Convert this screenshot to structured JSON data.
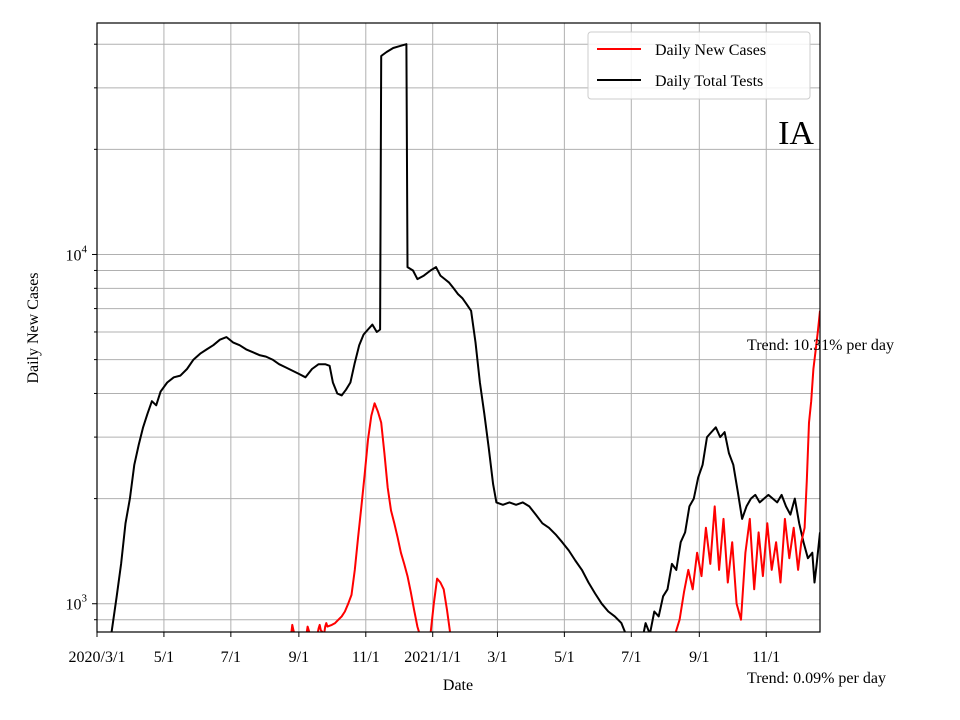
{
  "chart_data": {
    "type": "line",
    "xlabel": "Date",
    "ylabel": "Daily New Cases",
    "yscale": "log",
    "ylim": [
      830,
      46000
    ],
    "xlim": [
      "2020-03-01",
      "2021-12-20"
    ],
    "x_ticks": [
      {
        "date": "2020-03-01",
        "label": "2020/3/1"
      },
      {
        "date": "2020-05-01",
        "label": "5/1"
      },
      {
        "date": "2020-07-01",
        "label": "7/1"
      },
      {
        "date": "2020-09-01",
        "label": "9/1"
      },
      {
        "date": "2020-11-01",
        "label": "11/1"
      },
      {
        "date": "2021-01-01",
        "label": "2021/1/1"
      },
      {
        "date": "2021-03-01",
        "label": "3/1"
      },
      {
        "date": "2021-05-01",
        "label": "5/1"
      },
      {
        "date": "2021-07-01",
        "label": "7/1"
      },
      {
        "date": "2021-09-01",
        "label": "9/1"
      },
      {
        "date": "2021-11-01",
        "label": "11/1"
      }
    ],
    "y_major_ticks": [
      {
        "value": 1000,
        "base": "10",
        "exp": "3"
      },
      {
        "value": 10000,
        "base": "10",
        "exp": "4"
      }
    ],
    "y_minor_ticks": [
      900,
      2000,
      3000,
      4000,
      5000,
      6000,
      7000,
      8000,
      9000,
      20000,
      30000,
      40000
    ],
    "grid": true,
    "legend_position": "top-right",
    "annotations": {
      "state": "IA",
      "trend_cases": "Trend: 10.31% per day",
      "trend_tests": "Trend: 0.09% per day"
    },
    "series": [
      {
        "name": "Daily New Cases",
        "color": "#ff0000",
        "points": [
          [
            "2020-08-25",
            830
          ],
          [
            "2020-08-26",
            870
          ],
          [
            "2020-08-27",
            840
          ],
          [
            "2020-08-28",
            830
          ],
          [
            "2020-09-08",
            830
          ],
          [
            "2020-09-09",
            860
          ],
          [
            "2020-09-10",
            840
          ],
          [
            "2020-09-11",
            830
          ],
          [
            "2020-09-18",
            830
          ],
          [
            "2020-09-19",
            850
          ],
          [
            "2020-09-20",
            870
          ],
          [
            "2020-09-21",
            840
          ],
          [
            "2020-09-24",
            830
          ],
          [
            "2020-09-25",
            860
          ],
          [
            "2020-09-26",
            880
          ],
          [
            "2020-09-27",
            860
          ],
          [
            "2020-10-01",
            870
          ],
          [
            "2020-10-04",
            880
          ],
          [
            "2020-10-07",
            900
          ],
          [
            "2020-10-10",
            920
          ],
          [
            "2020-10-13",
            950
          ],
          [
            "2020-10-16",
            1000
          ],
          [
            "2020-10-19",
            1060
          ],
          [
            "2020-10-22",
            1250
          ],
          [
            "2020-10-25",
            1550
          ],
          [
            "2020-10-28",
            1900
          ],
          [
            "2020-10-31",
            2350
          ],
          [
            "2020-11-03",
            2950
          ],
          [
            "2020-11-06",
            3450
          ],
          [
            "2020-11-09",
            3750
          ],
          [
            "2020-11-12",
            3550
          ],
          [
            "2020-11-15",
            3300
          ],
          [
            "2020-11-18",
            2700
          ],
          [
            "2020-11-21",
            2150
          ],
          [
            "2020-11-24",
            1850
          ],
          [
            "2020-11-27",
            1700
          ],
          [
            "2020-11-30",
            1550
          ],
          [
            "2020-12-03",
            1400
          ],
          [
            "2020-12-06",
            1300
          ],
          [
            "2020-12-09",
            1200
          ],
          [
            "2020-12-12",
            1080
          ],
          [
            "2020-12-15",
            960
          ],
          [
            "2020-12-18",
            860
          ],
          [
            "2020-12-20",
            830
          ],
          [
            "2020-12-30",
            830
          ],
          [
            "2021-01-02",
            1000
          ],
          [
            "2021-01-05",
            1180
          ],
          [
            "2021-01-08",
            1150
          ],
          [
            "2021-01-11",
            1100
          ],
          [
            "2021-01-14",
            960
          ],
          [
            "2021-01-17",
            830
          ],
          [
            "2021-08-10",
            830
          ],
          [
            "2021-08-14",
            900
          ],
          [
            "2021-08-18",
            1080
          ],
          [
            "2021-08-22",
            1250
          ],
          [
            "2021-08-26",
            1100
          ],
          [
            "2021-08-30",
            1400
          ],
          [
            "2021-09-03",
            1200
          ],
          [
            "2021-09-07",
            1650
          ],
          [
            "2021-09-11",
            1300
          ],
          [
            "2021-09-15",
            1900
          ],
          [
            "2021-09-19",
            1250
          ],
          [
            "2021-09-23",
            1750
          ],
          [
            "2021-09-27",
            1150
          ],
          [
            "2021-10-01",
            1500
          ],
          [
            "2021-10-05",
            1000
          ],
          [
            "2021-10-09",
            900
          ],
          [
            "2021-10-13",
            1400
          ],
          [
            "2021-10-17",
            1750
          ],
          [
            "2021-10-21",
            1100
          ],
          [
            "2021-10-25",
            1600
          ],
          [
            "2021-10-29",
            1200
          ],
          [
            "2021-11-02",
            1700
          ],
          [
            "2021-11-06",
            1250
          ],
          [
            "2021-11-10",
            1500
          ],
          [
            "2021-11-14",
            1150
          ],
          [
            "2021-11-18",
            1750
          ],
          [
            "2021-11-22",
            1350
          ],
          [
            "2021-11-26",
            1650
          ],
          [
            "2021-11-30",
            1250
          ],
          [
            "2021-12-03",
            1500
          ],
          [
            "2021-12-06",
            1650
          ],
          [
            "2021-12-08",
            2250
          ],
          [
            "2021-12-10",
            3300
          ],
          [
            "2021-12-12",
            3800
          ],
          [
            "2021-12-14",
            4700
          ],
          [
            "2021-12-16",
            5300
          ],
          [
            "2021-12-18",
            6000
          ],
          [
            "2021-12-20",
            6900
          ]
        ]
      },
      {
        "name": "Daily Total Tests",
        "color": "#000000",
        "points": [
          [
            "2020-03-14",
            830
          ],
          [
            "2020-03-19",
            1050
          ],
          [
            "2020-03-23",
            1300
          ],
          [
            "2020-03-27",
            1700
          ],
          [
            "2020-03-31",
            2000
          ],
          [
            "2020-04-04",
            2500
          ],
          [
            "2020-04-08",
            2850
          ],
          [
            "2020-04-12",
            3200
          ],
          [
            "2020-04-16",
            3500
          ],
          [
            "2020-04-20",
            3800
          ],
          [
            "2020-04-24",
            3700
          ],
          [
            "2020-04-28",
            4050
          ],
          [
            "2020-05-04",
            4300
          ],
          [
            "2020-05-10",
            4450
          ],
          [
            "2020-05-16",
            4500
          ],
          [
            "2020-05-22",
            4700
          ],
          [
            "2020-05-28",
            5000
          ],
          [
            "2020-06-03",
            5200
          ],
          [
            "2020-06-09",
            5350
          ],
          [
            "2020-06-15",
            5500
          ],
          [
            "2020-06-21",
            5700
          ],
          [
            "2020-06-27",
            5800
          ],
          [
            "2020-07-03",
            5600
          ],
          [
            "2020-07-09",
            5500
          ],
          [
            "2020-07-15",
            5350
          ],
          [
            "2020-07-21",
            5250
          ],
          [
            "2020-07-27",
            5150
          ],
          [
            "2020-08-02",
            5100
          ],
          [
            "2020-08-08",
            5000
          ],
          [
            "2020-08-14",
            4850
          ],
          [
            "2020-08-20",
            4750
          ],
          [
            "2020-08-26",
            4650
          ],
          [
            "2020-09-01",
            4550
          ],
          [
            "2020-09-07",
            4450
          ],
          [
            "2020-09-13",
            4700
          ],
          [
            "2020-09-19",
            4850
          ],
          [
            "2020-09-25",
            4850
          ],
          [
            "2020-09-29",
            4800
          ],
          [
            "2020-10-02",
            4300
          ],
          [
            "2020-10-06",
            4000
          ],
          [
            "2020-10-10",
            3950
          ],
          [
            "2020-10-14",
            4100
          ],
          [
            "2020-10-18",
            4300
          ],
          [
            "2020-10-22",
            4900
          ],
          [
            "2020-10-26",
            5500
          ],
          [
            "2020-10-30",
            5900
          ],
          [
            "2020-11-03",
            6100
          ],
          [
            "2020-11-07",
            6300
          ],
          [
            "2020-11-11",
            6000
          ],
          [
            "2020-11-14",
            6100
          ],
          [
            "2020-11-15",
            37000
          ],
          [
            "2020-11-20",
            38000
          ],
          [
            "2020-11-26",
            39000
          ],
          [
            "2020-12-02",
            39500
          ],
          [
            "2020-12-08",
            40000
          ],
          [
            "2020-12-09",
            9200
          ],
          [
            "2020-12-14",
            9000
          ],
          [
            "2020-12-18",
            8500
          ],
          [
            "2020-12-24",
            8700
          ],
          [
            "2020-12-30",
            9000
          ],
          [
            "2021-01-04",
            9200
          ],
          [
            "2021-01-08",
            8700
          ],
          [
            "2021-01-12",
            8500
          ],
          [
            "2021-01-16",
            8300
          ],
          [
            "2021-01-20",
            8000
          ],
          [
            "2021-01-24",
            7700
          ],
          [
            "2021-01-28",
            7500
          ],
          [
            "2021-02-01",
            7200
          ],
          [
            "2021-02-05",
            6900
          ],
          [
            "2021-02-09",
            5600
          ],
          [
            "2021-02-13",
            4300
          ],
          [
            "2021-02-17",
            3500
          ],
          [
            "2021-02-21",
            2800
          ],
          [
            "2021-02-25",
            2200
          ],
          [
            "2021-02-28",
            1950
          ],
          [
            "2021-03-06",
            1920
          ],
          [
            "2021-03-12",
            1950
          ],
          [
            "2021-03-18",
            1920
          ],
          [
            "2021-03-24",
            1950
          ],
          [
            "2021-03-30",
            1900
          ],
          [
            "2021-04-05",
            1800
          ],
          [
            "2021-04-11",
            1700
          ],
          [
            "2021-04-17",
            1650
          ],
          [
            "2021-04-23",
            1580
          ],
          [
            "2021-04-29",
            1500
          ],
          [
            "2021-05-05",
            1420
          ],
          [
            "2021-05-11",
            1330
          ],
          [
            "2021-05-17",
            1250
          ],
          [
            "2021-05-23",
            1150
          ],
          [
            "2021-05-29",
            1070
          ],
          [
            "2021-06-04",
            1000
          ],
          [
            "2021-06-10",
            950
          ],
          [
            "2021-06-16",
            920
          ],
          [
            "2021-06-22",
            880
          ],
          [
            "2021-06-26",
            830
          ],
          [
            "2021-07-12",
            830
          ],
          [
            "2021-07-14",
            880
          ],
          [
            "2021-07-18",
            830
          ],
          [
            "2021-07-22",
            950
          ],
          [
            "2021-07-26",
            920
          ],
          [
            "2021-07-30",
            1050
          ],
          [
            "2021-08-03",
            1100
          ],
          [
            "2021-08-07",
            1300
          ],
          [
            "2021-08-11",
            1250
          ],
          [
            "2021-08-15",
            1500
          ],
          [
            "2021-08-19",
            1600
          ],
          [
            "2021-08-23",
            1900
          ],
          [
            "2021-08-27",
            2000
          ],
          [
            "2021-08-31",
            2300
          ],
          [
            "2021-09-04",
            2500
          ],
          [
            "2021-09-08",
            3000
          ],
          [
            "2021-09-12",
            3100
          ],
          [
            "2021-09-16",
            3200
          ],
          [
            "2021-09-20",
            3000
          ],
          [
            "2021-09-24",
            3100
          ],
          [
            "2021-09-28",
            2700
          ],
          [
            "2021-10-02",
            2500
          ],
          [
            "2021-10-06",
            2100
          ],
          [
            "2021-10-10",
            1750
          ],
          [
            "2021-10-14",
            1900
          ],
          [
            "2021-10-18",
            2000
          ],
          [
            "2021-10-22",
            2050
          ],
          [
            "2021-10-26",
            1950
          ],
          [
            "2021-10-30",
            2000
          ],
          [
            "2021-11-03",
            2050
          ],
          [
            "2021-11-07",
            2000
          ],
          [
            "2021-11-11",
            1950
          ],
          [
            "2021-11-15",
            2050
          ],
          [
            "2021-11-19",
            1900
          ],
          [
            "2021-11-23",
            1800
          ],
          [
            "2021-11-27",
            2000
          ],
          [
            "2021-12-01",
            1700
          ],
          [
            "2021-12-05",
            1500
          ],
          [
            "2021-12-09",
            1350
          ],
          [
            "2021-12-13",
            1400
          ],
          [
            "2021-12-15",
            1150
          ],
          [
            "2021-12-17",
            1300
          ],
          [
            "2021-12-20",
            1600
          ]
        ]
      }
    ]
  }
}
